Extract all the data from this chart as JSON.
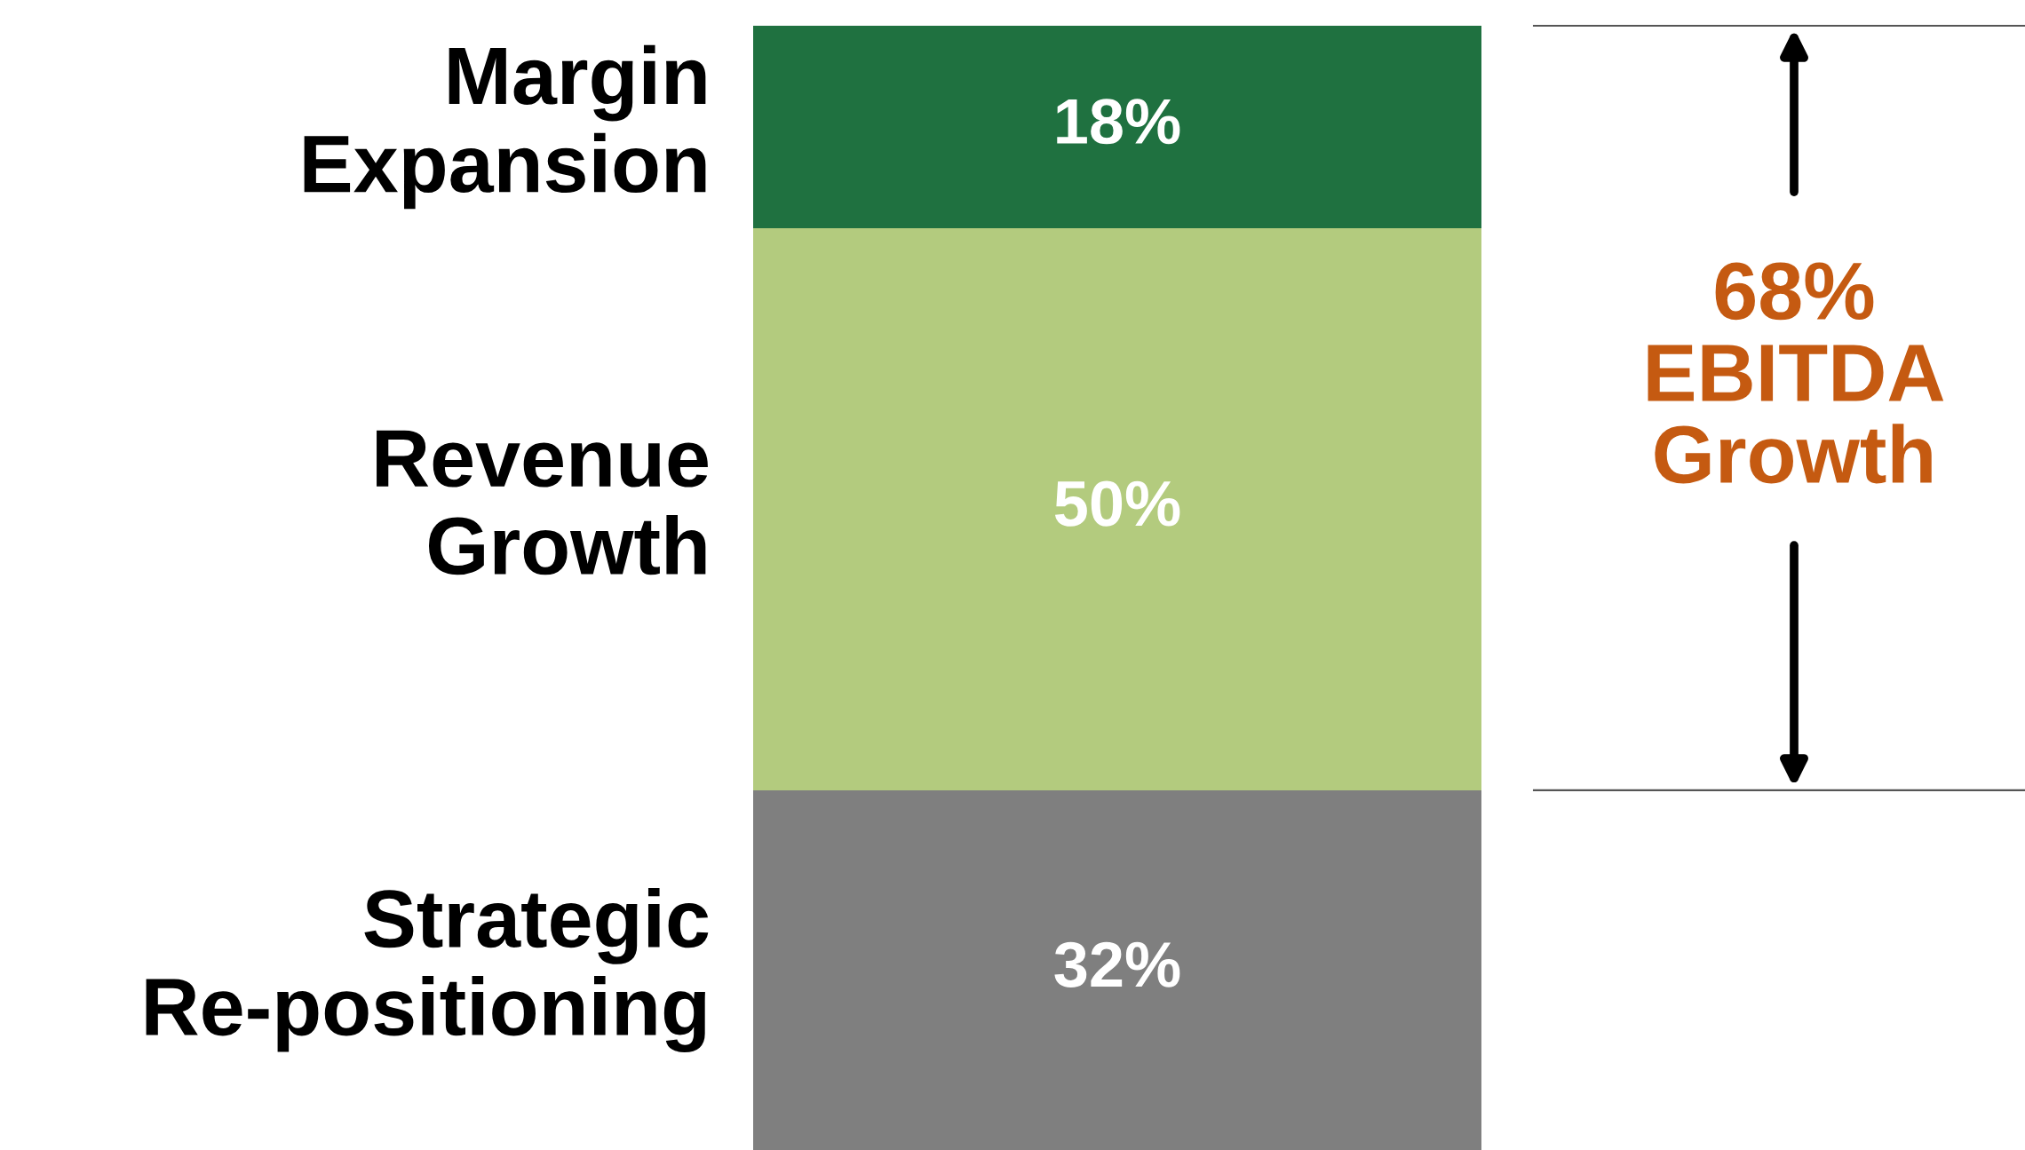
{
  "chart_data": {
    "type": "bar",
    "stacked": true,
    "categories": [
      null
    ],
    "tick_labels": false,
    "grid": false,
    "series": [
      {
        "name": "Strategic\nRe-positioning",
        "color": "#7f7f7f",
        "values": [
          32
        ],
        "value_labels": [
          "32%"
        ]
      },
      {
        "name": "Revenue\nGrowth",
        "color": "#b3cb7e",
        "values": [
          50
        ],
        "value_labels": [
          "50%"
        ]
      },
      {
        "name": "Margin\nExpansion",
        "color": "#1f7140",
        "values": [
          18
        ],
        "value_labels": [
          "18%"
        ]
      }
    ],
    "annotations": [
      "68%\nEBITDA\nGrowth"
    ]
  }
}
